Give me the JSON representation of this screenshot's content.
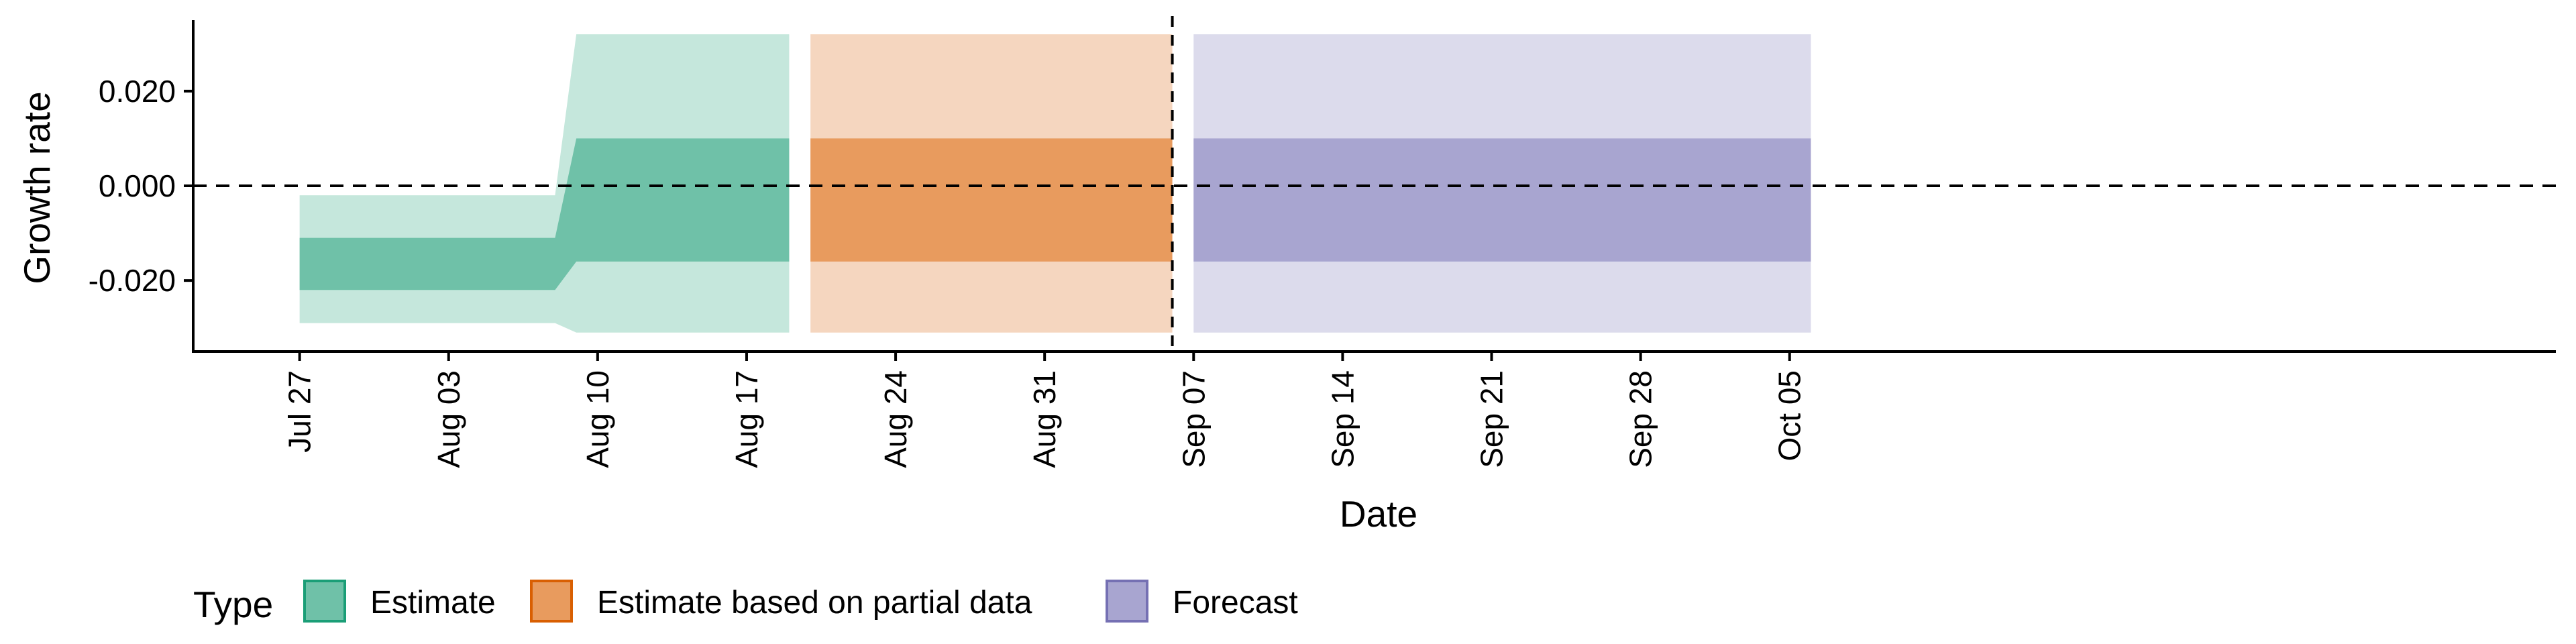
{
  "chart_data": {
    "type": "area",
    "title": "",
    "xlabel": "Date",
    "ylabel": "Growth rate",
    "ylim": [
      -0.035,
      0.035
    ],
    "y_ticks": [
      -0.02,
      0.0,
      0.02
    ],
    "y_tick_labels": [
      "-0.020",
      "0.000",
      "0.020"
    ],
    "x_range_day_offset": [
      -5,
      106
    ],
    "x_ticks": [
      {
        "label": "Jul 27",
        "day": 0
      },
      {
        "label": "Aug 03",
        "day": 7
      },
      {
        "label": "Aug 10",
        "day": 14
      },
      {
        "label": "Aug 17",
        "day": 21
      },
      {
        "label": "Aug 24",
        "day": 28
      },
      {
        "label": "Aug 31",
        "day": 35
      },
      {
        "label": "Sep 07",
        "day": 42
      },
      {
        "label": "Sep 14",
        "day": 49
      },
      {
        "label": "Sep 21",
        "day": 56
      },
      {
        "label": "Sep 28",
        "day": 63
      },
      {
        "label": "Oct 05",
        "day": 70
      }
    ],
    "reference_lines": {
      "horizontal_y": 0.0,
      "vertical_day": 41
    },
    "legend": {
      "title": "Type",
      "position": "bottom",
      "entries": [
        {
          "label": "Estimate",
          "fill": "#6fc1a8",
          "border": "#1b9e77"
        },
        {
          "label": "Estimate based on partial data",
          "fill": "#e89b5e",
          "border": "#d95f02"
        },
        {
          "label": "Forecast",
          "fill": "#a8a5d0",
          "border": "#7570b3"
        }
      ]
    },
    "series": [
      {
        "name": "Estimate",
        "color_inner": "#6fc1a8",
        "color_outer": "#c5e7dc",
        "points": [
          {
            "day": 0,
            "outer": [
              -0.029,
              -0.002
            ],
            "inner": [
              -0.022,
              -0.011
            ]
          },
          {
            "day": 12,
            "outer": [
              -0.029,
              -0.002
            ],
            "inner": [
              -0.022,
              -0.011
            ]
          },
          {
            "day": 13,
            "outer": [
              -0.031,
              0.032
            ],
            "inner": [
              -0.016,
              0.01
            ]
          },
          {
            "day": 23,
            "outer": [
              -0.031,
              0.032
            ],
            "inner": [
              -0.016,
              0.01
            ]
          }
        ]
      },
      {
        "name": "Estimate based on partial data",
        "color_inner": "#e89b5e",
        "color_outer": "#f5d6bf",
        "points": [
          {
            "day": 24,
            "outer": [
              -0.031,
              0.032
            ],
            "inner": [
              -0.016,
              0.01
            ]
          },
          {
            "day": 41,
            "outer": [
              -0.031,
              0.032
            ],
            "inner": [
              -0.016,
              0.01
            ]
          }
        ]
      },
      {
        "name": "Forecast",
        "color_inner": "#a8a5d0",
        "color_outer": "#dcdbec",
        "points": [
          {
            "day": 42,
            "outer": [
              -0.031,
              0.032
            ],
            "inner": [
              -0.016,
              0.01
            ]
          },
          {
            "day": 71,
            "outer": [
              -0.031,
              0.032
            ],
            "inner": [
              -0.016,
              0.01
            ]
          }
        ]
      }
    ]
  }
}
